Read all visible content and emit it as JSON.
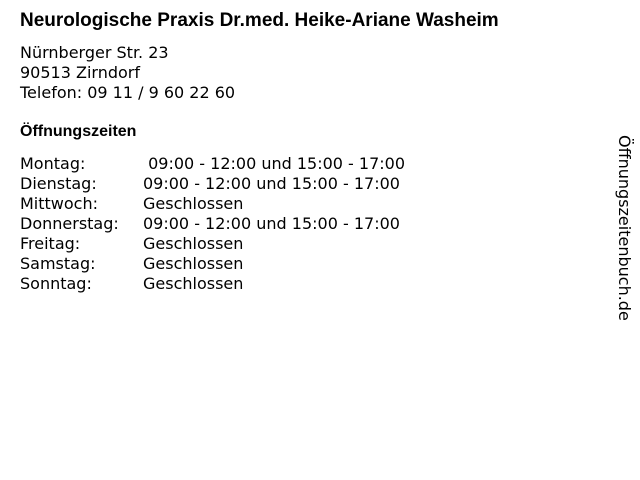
{
  "title": "Neurologische Praxis Dr.med. Heike-Ariane Washeim",
  "address": {
    "street": "Nürnberger Str. 23",
    "city": "90513 Zirndorf",
    "phone": "Telefon: 09 11 / 9 60 22 60"
  },
  "hours_heading": "Öffnungszeiten",
  "hours": [
    {
      "day": "Montag:",
      "time": " 09:00 - 12:00 und 15:00 - 17:00"
    },
    {
      "day": "Dienstag:",
      "time": "09:00 - 12:00 und 15:00 - 17:00"
    },
    {
      "day": "Mittwoch:",
      "time": "Geschlossen"
    },
    {
      "day": "Donnerstag:",
      "time": "09:00 - 12:00 und 15:00 - 17:00"
    },
    {
      "day": "Freitag:",
      "time": "Geschlossen"
    },
    {
      "day": "Samstag:",
      "time": "Geschlossen"
    },
    {
      "day": "Sonntag:",
      "time": "Geschlossen"
    }
  ],
  "side_label": "Öffnungszeitenbuch.de"
}
